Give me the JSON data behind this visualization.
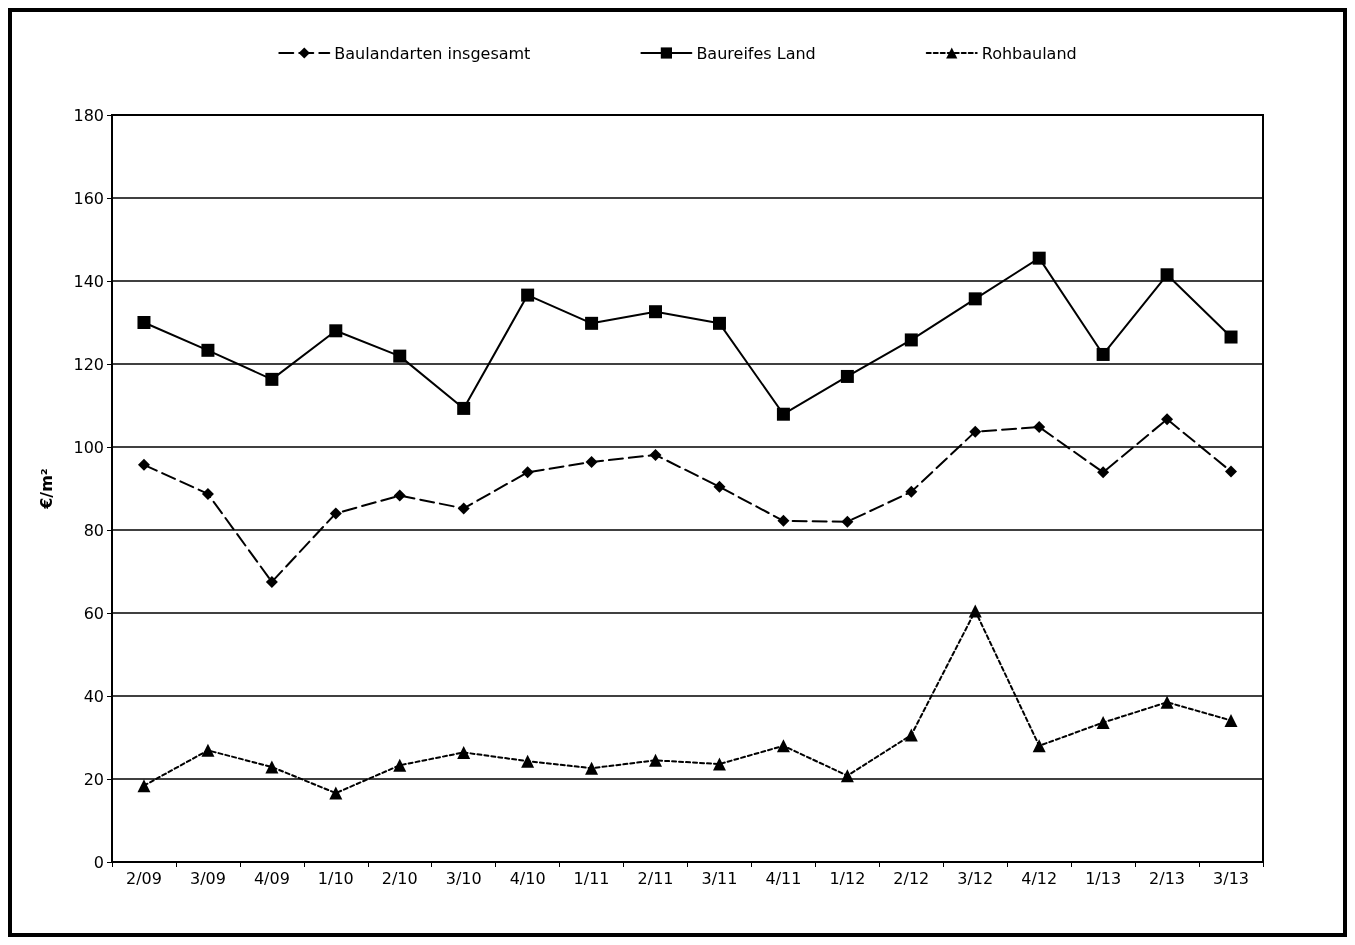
{
  "chart_data": {
    "type": "line",
    "ylabel": "€/m²",
    "categories": [
      "2/09",
      "3/09",
      "4/09",
      "1/10",
      "2/10",
      "3/10",
      "4/10",
      "1/11",
      "2/11",
      "3/11",
      "4/11",
      "1/12",
      "2/12",
      "3/12",
      "4/12",
      "1/13",
      "2/13",
      "3/13"
    ],
    "series": [
      {
        "name": "Baulandarten insgesamt",
        "color": "#000000",
        "marker": "diamond",
        "line_style": "dashed",
        "values": [
          95.7,
          88.7,
          67.5,
          84,
          88.3,
          85.2,
          93.9,
          96.4,
          98.1,
          90.4,
          82.2,
          82,
          89.2,
          103.7,
          104.8,
          93.9,
          106.7,
          94.1
        ]
      },
      {
        "name": "Baureifes Land",
        "color": "#000000",
        "marker": "square",
        "line_style": "solid",
        "values": [
          130,
          123.3,
          116.3,
          128,
          121.9,
          109.3,
          136.6,
          129.8,
          132.6,
          129.8,
          107.9,
          117,
          125.8,
          135.7,
          145.5,
          122.3,
          141.5,
          126.5
        ]
      },
      {
        "name": "Rohbauland",
        "color": "#000000",
        "marker": "triangle",
        "line_style": "dotted",
        "values": [
          18.4,
          26.9,
          22.9,
          16.6,
          23.3,
          26.4,
          24.3,
          22.6,
          24.5,
          23.6,
          28,
          20.8,
          30.6,
          60.5,
          28,
          33.6,
          38.5,
          34.1
        ]
      }
    ],
    "ylim": [
      0,
      180
    ],
    "yticks": [
      0,
      20,
      40,
      60,
      80,
      100,
      120,
      140,
      160,
      180
    ],
    "grid": "y",
    "legend": "top"
  }
}
